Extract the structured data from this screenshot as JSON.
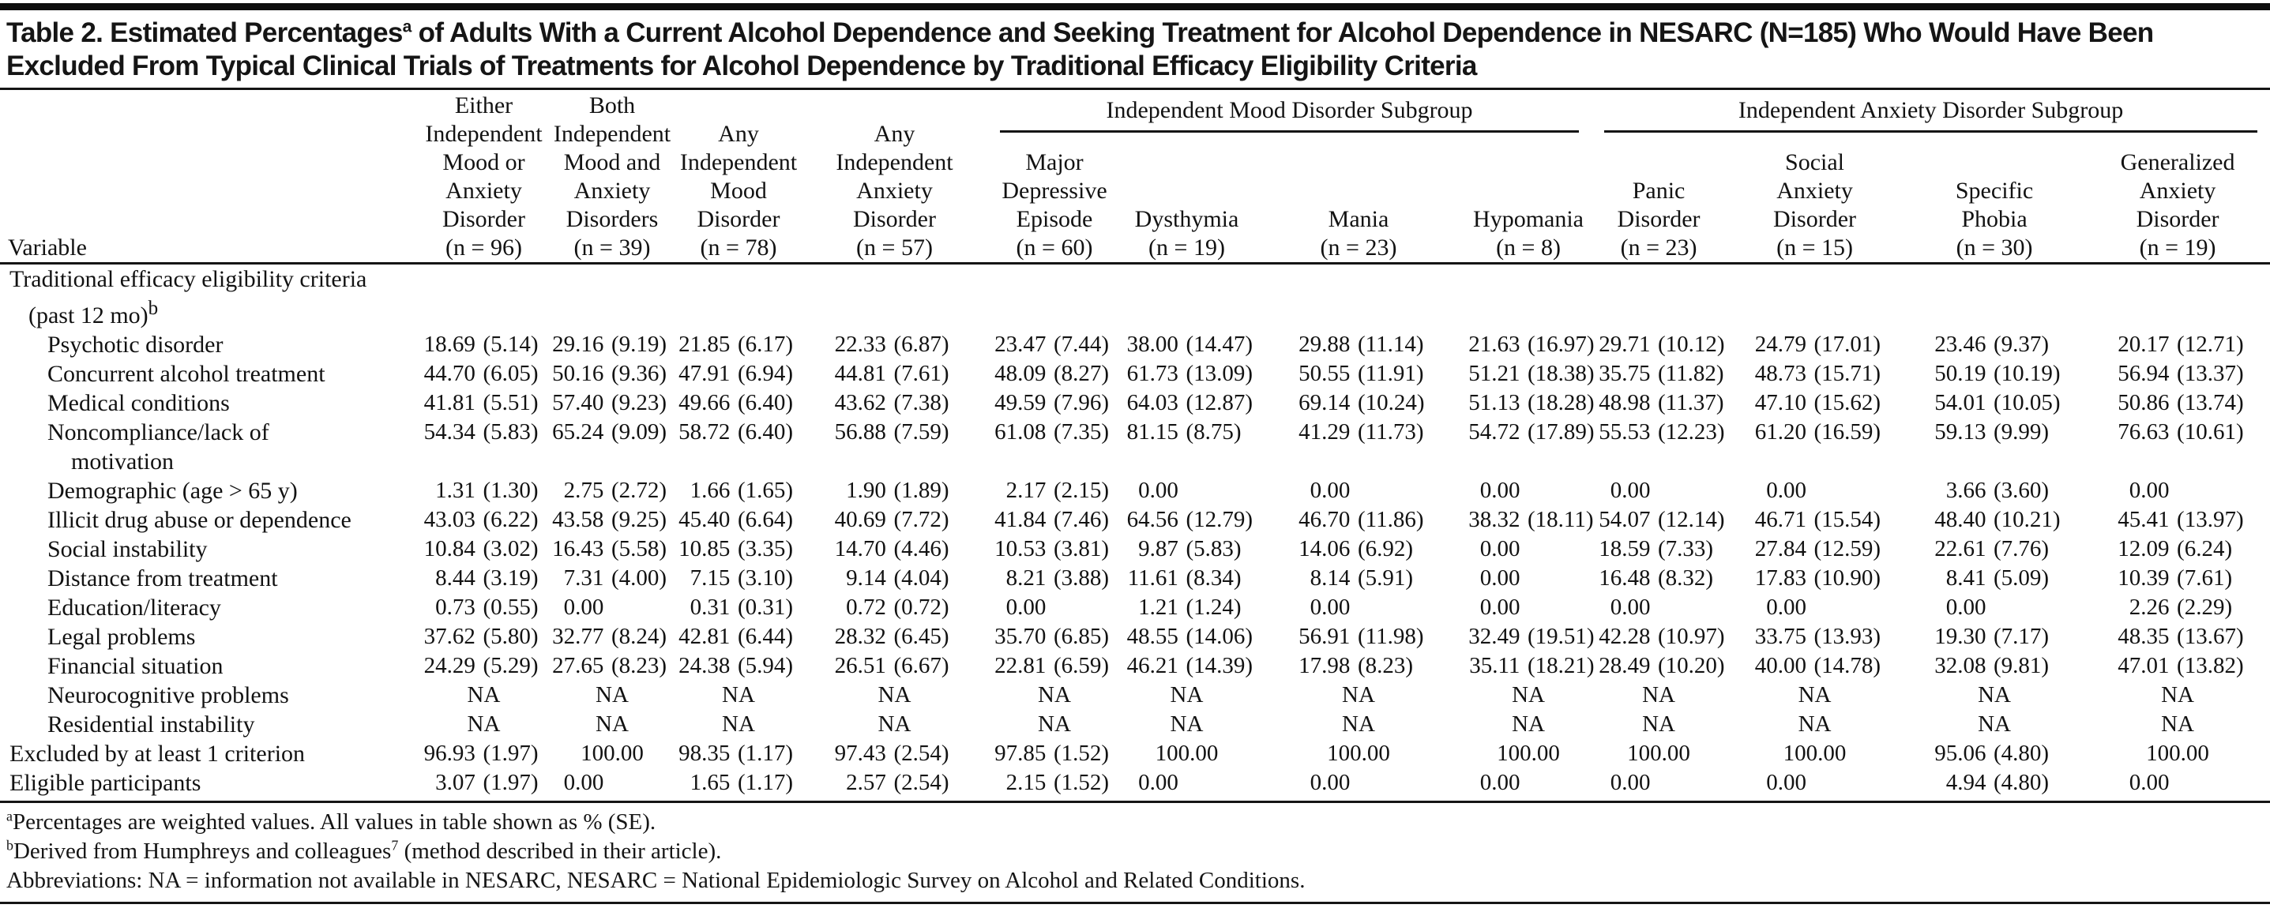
{
  "colors": {
    "text": "#121212",
    "rule": "#151515",
    "background": "#ffffff"
  },
  "title": {
    "pre": "Table 2. Estimated Percentages",
    "sup": "a",
    "post": " of Adults With a Current Alcohol Dependence and Seeking Treatment for Alcohol Dependence in NESARC (N=185) Who Would Have Been Excluded From Typical Clinical Trials of Treatments for Alcohol Dependence by Traditional Efficacy Eligibility Criteria"
  },
  "table": {
    "variable_header": "Variable",
    "groups": [
      {
        "label": "Independent Mood Disorder Subgroup",
        "span": 4
      },
      {
        "label": "Independent Anxiety Disorder Subgroup",
        "span": 4
      }
    ],
    "columns": [
      {
        "lines": [
          "Either",
          "Independent",
          "Mood or",
          "Anxiety",
          "Disorder"
        ],
        "n": "(n = 96)"
      },
      {
        "lines": [
          "Both",
          "Independent",
          "Mood and",
          "Anxiety",
          "Disorders"
        ],
        "n": "(n = 39)"
      },
      {
        "lines": [
          "Any",
          "Independent",
          "Mood",
          "Disorder"
        ],
        "n": "(n = 78)"
      },
      {
        "lines": [
          "Any",
          "Independent",
          "Anxiety",
          "Disorder"
        ],
        "n": "(n = 57)"
      },
      {
        "lines": [
          "Major",
          "Depressive",
          "Episode"
        ],
        "n": "(n = 60)"
      },
      {
        "lines": [
          "Dysthymia"
        ],
        "n": "(n = 19)"
      },
      {
        "lines": [
          "Mania"
        ],
        "n": "(n = 23)"
      },
      {
        "lines": [
          "Hypomania"
        ],
        "n": "(n = 8)"
      },
      {
        "lines": [
          "Panic",
          "Disorder"
        ],
        "n": "(n = 23)"
      },
      {
        "lines": [
          "Social",
          "Anxiety",
          "Disorder"
        ],
        "n": "(n = 15)"
      },
      {
        "lines": [
          "Specific",
          "Phobia"
        ],
        "n": "(n = 30)"
      },
      {
        "lines": [
          "Generalized",
          "Anxiety",
          "Disorder"
        ],
        "n": "(n = 19)"
      }
    ],
    "rows": [
      {
        "label": "Traditional efficacy eligibility criteria",
        "indent": 0,
        "label2": "(past 12 mo)",
        "label2_sup": "b",
        "label2_indent": 1,
        "values": []
      },
      {
        "label": "Psychotic disorder",
        "indent": 2,
        "values": [
          "18.69 (5.14)",
          "29.16 (9.19)",
          "21.85 (6.17)",
          "22.33 (6.87)",
          "23.47 (7.44)",
          "38.00 (14.47)",
          "29.88 (11.14)",
          "21.63 (16.97)",
          "29.71 (10.12)",
          "24.79 (17.01)",
          "23.46 (9.37)",
          "20.17 (12.71)"
        ]
      },
      {
        "label": "Concurrent alcohol treatment",
        "indent": 2,
        "values": [
          "44.70 (6.05)",
          "50.16 (9.36)",
          "47.91 (6.94)",
          "44.81 (7.61)",
          "48.09 (8.27)",
          "61.73 (13.09)",
          "50.55 (11.91)",
          "51.21 (18.38)",
          "35.75 (11.82)",
          "48.73 (15.71)",
          "50.19 (10.19)",
          "56.94 (13.37)"
        ]
      },
      {
        "label": "Medical conditions",
        "indent": 2,
        "values": [
          "41.81 (5.51)",
          "57.40 (9.23)",
          "49.66 (6.40)",
          "43.62 (7.38)",
          "49.59 (7.96)",
          "64.03 (12.87)",
          "69.14 (10.24)",
          "51.13 (18.28)",
          "48.98 (11.37)",
          "47.10 (15.62)",
          "54.01 (10.05)",
          "50.86 (13.74)"
        ]
      },
      {
        "label": "Noncompliance/lack of",
        "indent": 2,
        "label2": "motivation",
        "label2_indent": 3,
        "values": [
          "54.34 (5.83)",
          "65.24 (9.09)",
          "58.72 (6.40)",
          "56.88 (7.59)",
          "61.08 (7.35)",
          "81.15 (8.75)",
          "41.29 (11.73)",
          "54.72 (17.89)",
          "55.53 (12.23)",
          "61.20 (16.59)",
          "59.13 (9.99)",
          "76.63 (10.61)"
        ]
      },
      {
        "label": "Demographic (age > 65 y)",
        "indent": 2,
        "values": [
          "1.31 (1.30)",
          "2.75 (2.72)",
          "1.66 (1.65)",
          "1.90 (1.89)",
          "2.17 (2.15)",
          "0.00",
          "0.00",
          "0.00",
          "0.00",
          "0.00",
          "3.66 (3.60)",
          "0.00"
        ]
      },
      {
        "label": "Illicit drug abuse or dependence",
        "indent": 2,
        "values": [
          "43.03 (6.22)",
          "43.58 (9.25)",
          "45.40 (6.64)",
          "40.69 (7.72)",
          "41.84 (7.46)",
          "64.56 (12.79)",
          "46.70 (11.86)",
          "38.32 (18.11)",
          "54.07 (12.14)",
          "46.71 (15.54)",
          "48.40 (10.21)",
          "45.41 (13.97)"
        ]
      },
      {
        "label": "Social instability",
        "indent": 2,
        "values": [
          "10.84 (3.02)",
          "16.43 (5.58)",
          "10.85 (3.35)",
          "14.70 (4.46)",
          "10.53 (3.81)",
          "9.87 (5.83)",
          "14.06 (6.92)",
          "0.00",
          "18.59 (7.33)",
          "27.84 (12.59)",
          "22.61 (7.76)",
          "12.09 (6.24)"
        ]
      },
      {
        "label": "Distance from treatment",
        "indent": 2,
        "values": [
          "8.44 (3.19)",
          "7.31 (4.00)",
          "7.15 (3.10)",
          "9.14 (4.04)",
          "8.21 (3.88)",
          "11.61 (8.34)",
          "8.14 (5.91)",
          "0.00",
          "16.48 (8.32)",
          "17.83 (10.90)",
          "8.41 (5.09)",
          "10.39 (7.61)"
        ]
      },
      {
        "label": "Education/literacy",
        "indent": 2,
        "values": [
          "0.73 (0.55)",
          "0.00",
          "0.31 (0.31)",
          "0.72 (0.72)",
          "0.00",
          "1.21 (1.24)",
          "0.00",
          "0.00",
          "0.00",
          "0.00",
          "0.00",
          "2.26 (2.29)"
        ]
      },
      {
        "label": "Legal problems",
        "indent": 2,
        "values": [
          "37.62 (5.80)",
          "32.77 (8.24)",
          "42.81 (6.44)",
          "28.32 (6.45)",
          "35.70 (6.85)",
          "48.55 (14.06)",
          "56.91 (11.98)",
          "32.49 (19.51)",
          "42.28 (10.97)",
          "33.75 (13.93)",
          "19.30 (7.17)",
          "48.35 (13.67)"
        ]
      },
      {
        "label": "Financial situation",
        "indent": 2,
        "values": [
          "24.29 (5.29)",
          "27.65 (8.23)",
          "24.38 (5.94)",
          "26.51 (6.67)",
          "22.81 (6.59)",
          "46.21 (14.39)",
          "17.98 (8.23)",
          "35.11 (18.21)",
          "28.49 (10.20)",
          "40.00 (14.78)",
          "32.08 (9.81)",
          "47.01 (13.82)"
        ]
      },
      {
        "label": "Neurocognitive problems",
        "indent": 2,
        "values": [
          "NA",
          "NA",
          "NA",
          "NA",
          "NA",
          "NA",
          "NA",
          "NA",
          "NA",
          "NA",
          "NA",
          "NA"
        ]
      },
      {
        "label": "Residential instability",
        "indent": 2,
        "values": [
          "NA",
          "NA",
          "NA",
          "NA",
          "NA",
          "NA",
          "NA",
          "NA",
          "NA",
          "NA",
          "NA",
          "NA"
        ]
      },
      {
        "label": "Excluded by at least 1 criterion",
        "indent": 0,
        "values": [
          "96.93 (1.97)",
          "100.00",
          "98.35 (1.17)",
          "97.43 (2.54)",
          "97.85 (1.52)",
          "100.00",
          "100.00",
          "100.00",
          "100.00",
          "100.00",
          "95.06 (4.80)",
          "100.00"
        ]
      },
      {
        "label": "Eligible participants",
        "indent": 0,
        "values": [
          "3.07 (1.97)",
          "0.00",
          "1.65 (1.17)",
          "2.57 (2.54)",
          "2.15 (1.52)",
          "0.00",
          "0.00",
          "0.00",
          "0.00",
          "0.00",
          "4.94 (4.80)",
          "0.00"
        ]
      }
    ]
  },
  "footnotes": [
    [
      {
        "sup": "a"
      },
      {
        "t": "Percentages are weighted values. All values in table shown as % (SE)."
      }
    ],
    [
      {
        "sup": "b"
      },
      {
        "t": "Derived from Humphreys and colleagues"
      },
      {
        "sup": "7"
      },
      {
        "t": " (method described in their article)."
      }
    ],
    [
      {
        "t": "Abbreviations: NA = information not available in NESARC, NESARC = National Epidemiologic Survey on Alcohol and Related Conditions."
      }
    ]
  ]
}
